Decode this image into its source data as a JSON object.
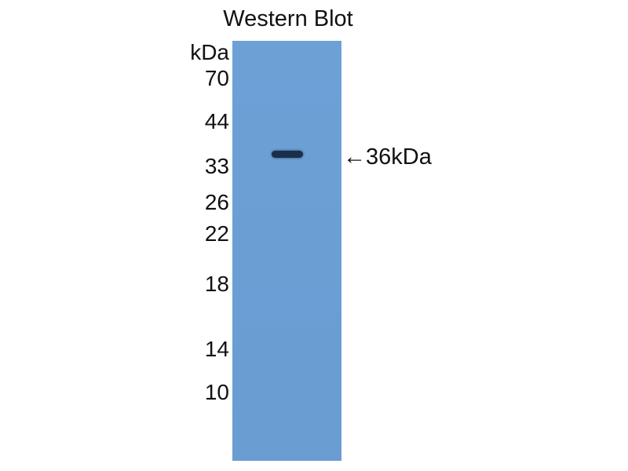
{
  "title": "Western Blot",
  "unit_label": "kDa",
  "markers": [
    "70",
    "44",
    "33",
    "26",
    "22",
    "18",
    "14",
    "10"
  ],
  "band_label": "←36kDa",
  "colors": {
    "membrane": "#6b9fd4",
    "band": "#1b2f4a"
  }
}
